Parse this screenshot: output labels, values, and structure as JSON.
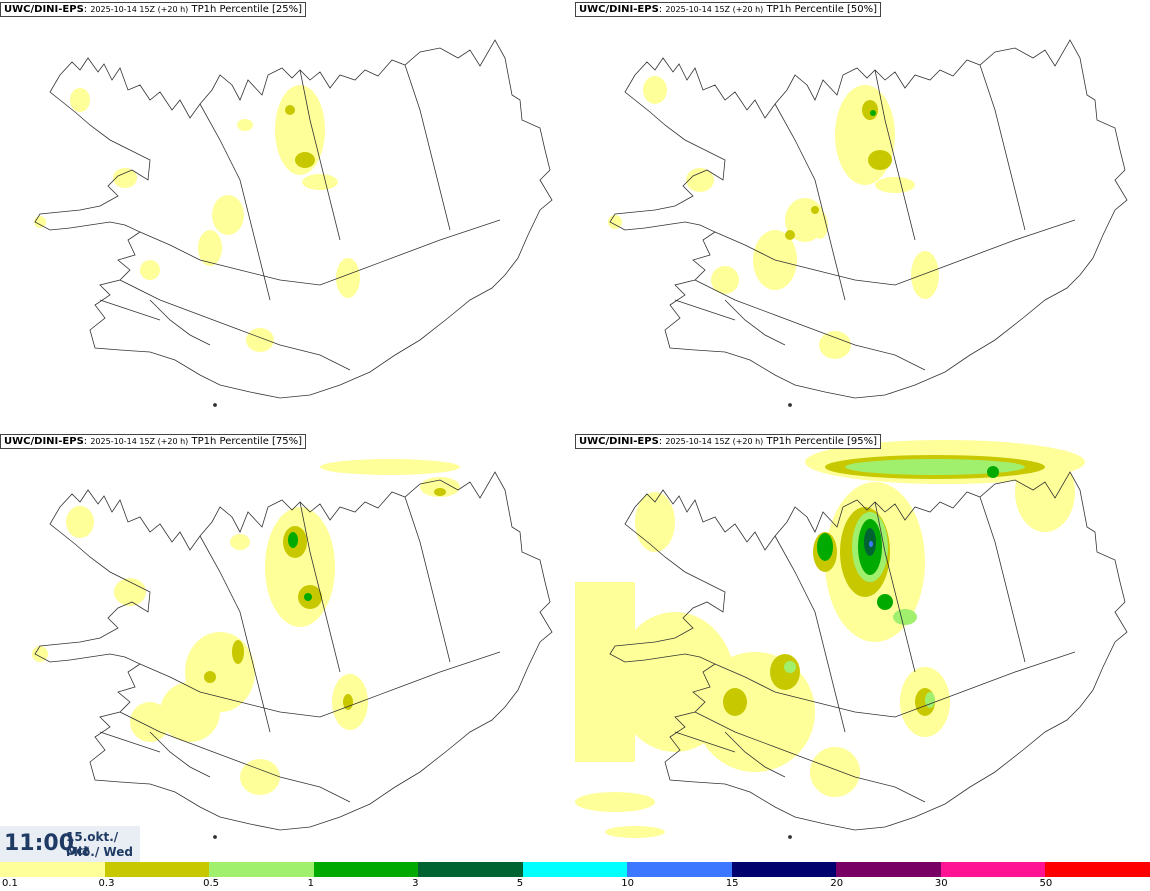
{
  "panels": [
    {
      "model": "UWC/DINI-EPS",
      "run": "2025-10-14 15Z (+20 h)",
      "product": "TP1h Percentile [25%]"
    },
    {
      "model": "UWC/DINI-EPS",
      "run": "2025-10-14 15Z (+20 h)",
      "product": "TP1h Percentile [50%]"
    },
    {
      "model": "UWC/DINI-EPS",
      "run": "2025-10-14 15Z (+20 h)",
      "product": "TP1h Percentile [75%]"
    },
    {
      "model": "UWC/DINI-EPS",
      "run": "2025-10-14 15Z (+20 h)",
      "product": "TP1h Percentile [95%]"
    }
  ],
  "valid": {
    "time": "11:00",
    "date_line1": "15.okt./ Oct",
    "date_line2": "Mið./ Wed"
  },
  "legend": {
    "colors": [
      "#ffff99",
      "#c8c800",
      "#a0f06e",
      "#00aa00",
      "#006432",
      "#00ffff",
      "#3c78ff",
      "#00006e",
      "#780064",
      "#ff1493",
      "#ff0000"
    ],
    "labels": [
      "0.1",
      "0.3",
      "0.5",
      "1",
      "3",
      "5",
      "10",
      "15",
      "20",
      "30",
      "50"
    ]
  }
}
